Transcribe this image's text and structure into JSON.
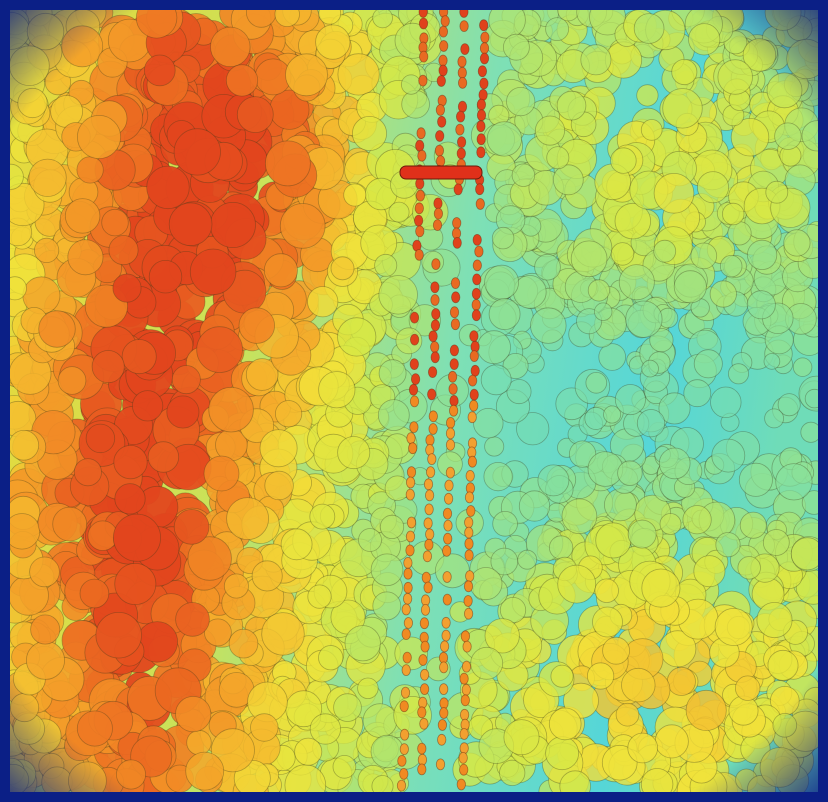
{
  "map": {
    "kind": "lidar-canopy-height",
    "palette": {
      "frame": "#0b1f86",
      "ground_low": "#3fd6e6",
      "mid": "#c8e85a",
      "canopy": "#f2e23a",
      "high": "#f08a22",
      "highest": "#e63a1c",
      "outline": "#3a3a1a"
    },
    "features": [
      {
        "name": "forest-west",
        "level": "high"
      },
      {
        "name": "forest-northeast",
        "level": "mid"
      },
      {
        "name": "forest-southeast",
        "level": "high"
      },
      {
        "name": "utility-corridor",
        "level": "highest"
      },
      {
        "name": "open-ground",
        "level": "low"
      }
    ]
  }
}
